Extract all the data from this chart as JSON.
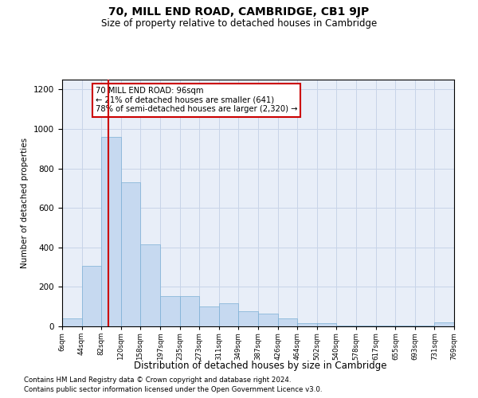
{
  "title": "70, MILL END ROAD, CAMBRIDGE, CB1 9JP",
  "subtitle": "Size of property relative to detached houses in Cambridge",
  "xlabel": "Distribution of detached houses by size in Cambridge",
  "ylabel": "Number of detached properties",
  "footnote1": "Contains HM Land Registry data © Crown copyright and database right 2024.",
  "footnote2": "Contains public sector information licensed under the Open Government Licence v3.0.",
  "property_label": "70 MILL END ROAD: 96sqm",
  "annotation_line1": "← 21% of detached houses are smaller (641)",
  "annotation_line2": "78% of semi-detached houses are larger (2,320) →",
  "red_line_x": 96,
  "bar_bins": [
    6,
    44,
    82,
    120,
    158,
    197,
    235,
    273,
    311,
    349,
    387,
    426,
    464,
    502,
    540,
    578,
    617,
    655,
    693,
    731,
    769
  ],
  "bar_heights": [
    40,
    305,
    960,
    730,
    415,
    155,
    155,
    100,
    115,
    75,
    65,
    40,
    15,
    15,
    5,
    5,
    5,
    5,
    5,
    20,
    5
  ],
  "bar_color": "#c6d9f0",
  "bar_edge_color": "#7bafd4",
  "red_line_color": "#cc0000",
  "grid_color": "#c8d4e8",
  "background_color": "#e8eef8",
  "ylim": [
    0,
    1250
  ],
  "yticks": [
    0,
    200,
    400,
    600,
    800,
    1000,
    1200
  ]
}
